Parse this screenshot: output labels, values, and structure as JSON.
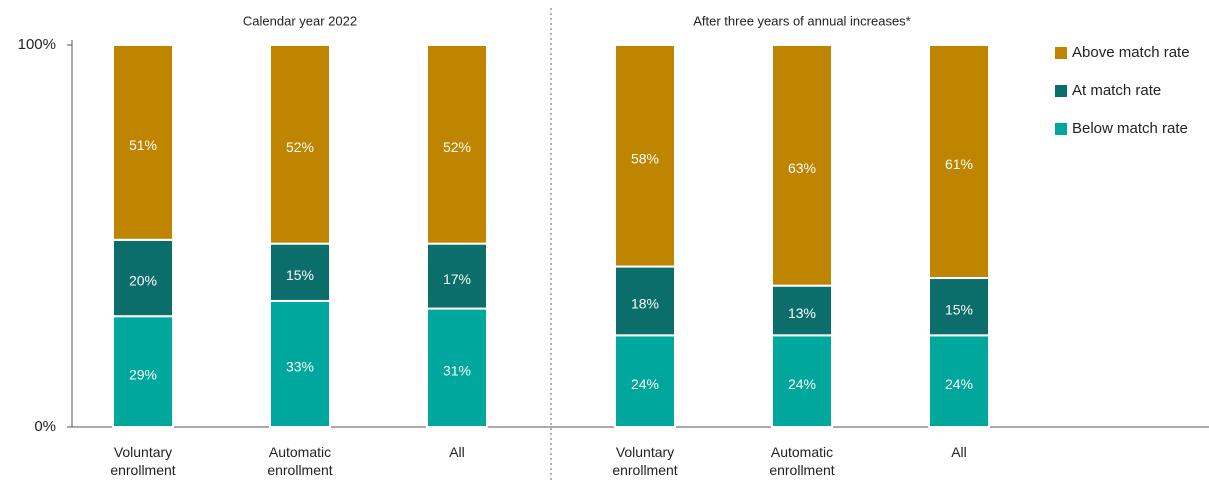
{
  "chart_data": {
    "type": "stacked_bar",
    "group_titles": [
      "Calendar year 2022",
      "After three years of annual increases*"
    ],
    "categories": [
      "Voluntary enrollment",
      "Automatic enrollment",
      "All",
      "Voluntary enrollment",
      "Automatic enrollment",
      "All"
    ],
    "series": [
      {
        "name": "Below match rate",
        "color": "#00a79d",
        "values": [
          29,
          33,
          31,
          24,
          24,
          24
        ],
        "value_labels": [
          "29%",
          "33%",
          "31%",
          "24%",
          "24%",
          "24%"
        ]
      },
      {
        "name": "At match rate",
        "color": "#0b6e6a",
        "values": [
          20,
          15,
          17,
          18,
          13,
          15
        ],
        "value_labels": [
          "20%",
          "15%",
          "17%",
          "18%",
          "13%",
          "15%"
        ]
      },
      {
        "name": "Above match rate",
        "color": "#bf8500",
        "values": [
          51,
          52,
          52,
          58,
          63,
          61
        ],
        "value_labels": [
          "51%",
          "52%",
          "52%",
          "58%",
          "63%",
          "61%"
        ]
      }
    ],
    "ylim": [
      0,
      100
    ],
    "yticks": [
      {
        "value": 0,
        "label": "0%"
      },
      {
        "value": 100,
        "label": "100%"
      }
    ],
    "legend": "right"
  }
}
